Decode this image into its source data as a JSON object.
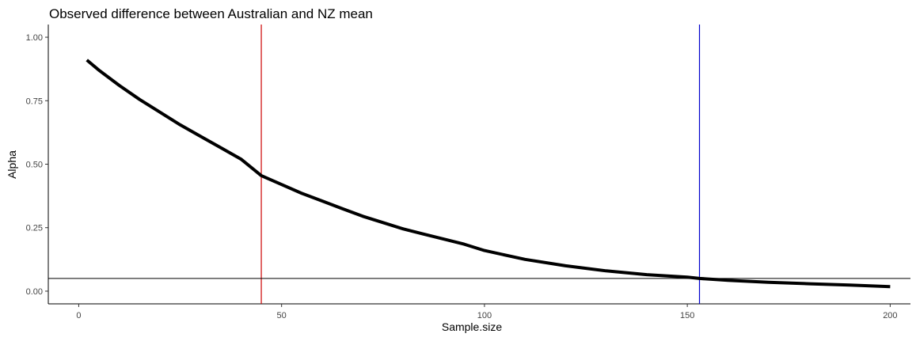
{
  "chart_data": {
    "type": "line",
    "title": "Observed difference between Australian and NZ mean",
    "xlabel": "Sample.size",
    "ylabel": "Alpha",
    "xlim": [
      -7.5,
      205
    ],
    "ylim": [
      -0.05,
      1.05
    ],
    "x_ticks": [
      0,
      50,
      100,
      150,
      200
    ],
    "y_ticks": [
      0.0,
      0.25,
      0.5,
      0.75,
      1.0
    ],
    "x_tick_labels": [
      "0",
      "50",
      "100",
      "150",
      "200"
    ],
    "y_tick_labels": [
      "0.00",
      "0.25",
      "0.50",
      "0.75",
      "1.00"
    ],
    "grid": false,
    "series": [
      {
        "color": "#000000",
        "x": [
          2,
          5,
          10,
          15,
          20,
          25,
          30,
          35,
          40,
          45,
          50,
          55,
          60,
          65,
          70,
          75,
          80,
          85,
          90,
          95,
          100,
          110,
          120,
          130,
          140,
          150,
          153,
          160,
          170,
          180,
          190,
          200
        ],
        "y": [
          0.91,
          0.87,
          0.81,
          0.755,
          0.705,
          0.655,
          0.61,
          0.565,
          0.52,
          0.455,
          0.42,
          0.385,
          0.355,
          0.325,
          0.295,
          0.27,
          0.245,
          0.225,
          0.205,
          0.185,
          0.16,
          0.125,
          0.1,
          0.08,
          0.065,
          0.055,
          0.05,
          0.043,
          0.035,
          0.029,
          0.024,
          0.018
        ]
      }
    ],
    "vlines": [
      {
        "x": 45,
        "color": "#cc0000"
      },
      {
        "x": 153,
        "color": "#0000cc"
      }
    ],
    "hlines": [
      {
        "y": 0.05,
        "color": "#000000"
      }
    ]
  }
}
